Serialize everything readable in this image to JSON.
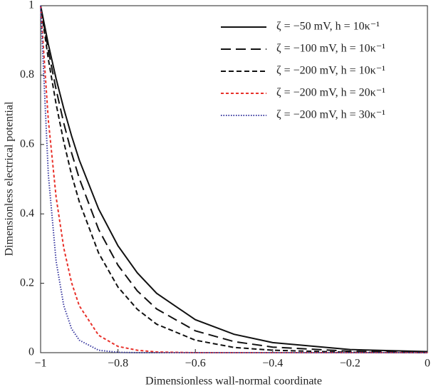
{
  "chart_data": {
    "type": "line",
    "xlabel": "Dimensionless wall-normal coordinate",
    "ylabel": "Dimensionless electrical potential",
    "x": [
      -1,
      -0.98,
      -0.96,
      -0.94,
      -0.92,
      -0.9,
      -0.85,
      -0.8,
      -0.75,
      -0.7,
      -0.6,
      -0.5,
      -0.4,
      -0.2,
      0
    ],
    "series": [
      {
        "name": "ζ = −50 mV, h = 10κ⁻¹",
        "color": "#111111",
        "dash": "none",
        "values": [
          1,
          0.889,
          0.79,
          0.703,
          0.625,
          0.555,
          0.414,
          0.308,
          0.23,
          0.171,
          0.095,
          0.053,
          0.029,
          0.009,
          0.003
        ]
      },
      {
        "name": "ζ = −100 mV, h = 10κ⁻¹",
        "color": "#111111",
        "dash": "14 7",
        "values": [
          1,
          0.871,
          0.759,
          0.661,
          0.576,
          0.502,
          0.355,
          0.252,
          0.178,
          0.126,
          0.063,
          0.032,
          0.016,
          0.004,
          0.001
        ]
      },
      {
        "name": "ζ = −200 mV, h = 10κ⁻¹",
        "color": "#111111",
        "dash": "7 4",
        "values": [
          1,
          0.846,
          0.717,
          0.607,
          0.513,
          0.435,
          0.287,
          0.189,
          0.125,
          0.082,
          0.036,
          0.015,
          0.007,
          0.001,
          0
        ]
      },
      {
        "name": "ζ = −200 mV, h = 20κ⁻¹",
        "color": "#e8312a",
        "dash": "4 3",
        "values": [
          1,
          0.67,
          0.449,
          0.301,
          0.202,
          0.135,
          0.05,
          0.018,
          0.007,
          0.002,
          0,
          0,
          0,
          0,
          0
        ]
      },
      {
        "name": "ζ = −200 mV, h = 30κ⁻¹",
        "color": "#3a3aa0",
        "dash": "1.5 2",
        "values": [
          1,
          0.513,
          0.264,
          0.135,
          0.069,
          0.036,
          0.007,
          0.001,
          0,
          0,
          0,
          0,
          0,
          0,
          0
        ]
      }
    ],
    "xlim": [
      -1,
      0
    ],
    "xticks": [
      {
        "value": -1,
        "label": "−1"
      },
      {
        "value": -0.8,
        "label": "−0.8"
      },
      {
        "value": -0.6,
        "label": "−0.6"
      },
      {
        "value": -0.4,
        "label": "−0.4"
      },
      {
        "value": -0.2,
        "label": "−0.2"
      },
      0
    ],
    "ylim": [
      0,
      1
    ],
    "yticks": [
      0,
      0.2,
      0.4,
      0.6,
      0.8,
      1
    ],
    "legend": "upper right"
  }
}
